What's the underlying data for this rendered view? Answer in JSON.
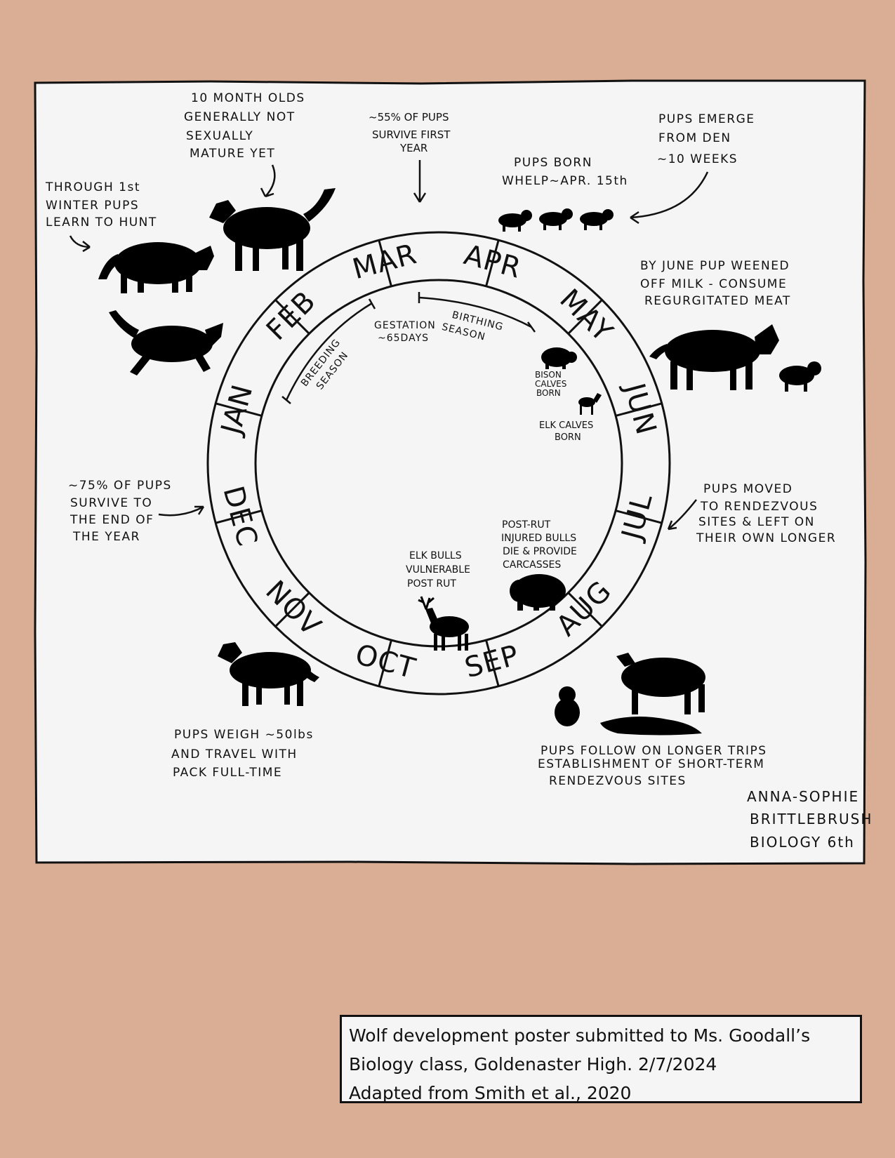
{
  "months": [
    "MAR",
    "APR",
    "MAY",
    "JUN",
    "JUL",
    "AUG",
    "SEP",
    "OCT",
    "NOV",
    "DEC",
    "JAN",
    "FEB"
  ],
  "inner_labels": {
    "gestation": [
      "GESTATION",
      "~65DAYS"
    ],
    "birthing": [
      "BIRTHING",
      "SEASON"
    ],
    "breeding": [
      "BREEDING",
      "SEASON"
    ],
    "bison": [
      "BISON",
      "CALVES",
      "BORN"
    ],
    "elk_calves": [
      "ELK CALVES",
      "BORN"
    ],
    "elk_bulls": [
      "ELK BULLS",
      "VULNERABLE",
      "POST RUT"
    ],
    "post_rut": [
      "POST-RUT",
      "INJURED BULLS",
      "DIE & PROVIDE",
      "CARCASSES"
    ]
  },
  "notes": {
    "ten_month": [
      "10 MONTH OLDS",
      "GENERALLY NOT",
      "SEXUALLY",
      "MATURE YET"
    ],
    "survive_first": [
      "~55% OF PUPS",
      "SURVIVE FIRST",
      "YEAR"
    ],
    "pups_born": [
      "PUPS BORN",
      "WHELP~APR. 15th"
    ],
    "pups_emerge": [
      "PUPS EMERGE",
      "FROM DEN",
      "~10 WEEKS"
    ],
    "first_winter": [
      "THROUGH 1st",
      "WINTER PUPS",
      "LEARN TO HUNT"
    ],
    "june_weaned": [
      "BY JUNE PUP WEENED",
      "OFF MILK - CONSUME",
      "REGURGITATED MEAT"
    ],
    "survive_year_end": [
      "~75% OF PUPS",
      "SURVIVE TO",
      "THE END OF",
      "THE YEAR"
    ],
    "rendezvous": [
      "PUPS MOVED",
      "TO RENDEZVOUS",
      "SITES & LEFT ON",
      "THEIR OWN LONGER"
    ],
    "pups_weigh": [
      "PUPS WEIGH ~50lbs",
      "AND TRAVEL WITH",
      "PACK FULL-TIME"
    ],
    "longer_trips": [
      "PUPS FOLLOW ON LONGER TRIPS",
      "ESTABLISHMENT OF SHORT-TERM",
      "RENDEZVOUS SITES"
    ]
  },
  "signature": [
    "ANNA-SOPHIE",
    "BRITTLEBRUSH",
    "BIOLOGY 6th"
  ],
  "caption": [
    "Wolf development poster submitted to Ms. Goodall’s",
    "Biology class, Goldenaster High. 2/7/2024",
    "Adapted from Smith et al., 2020"
  ],
  "colors": {
    "background": "#d9ae94",
    "paper": "#f5f5f5",
    "ink": "#111111"
  }
}
